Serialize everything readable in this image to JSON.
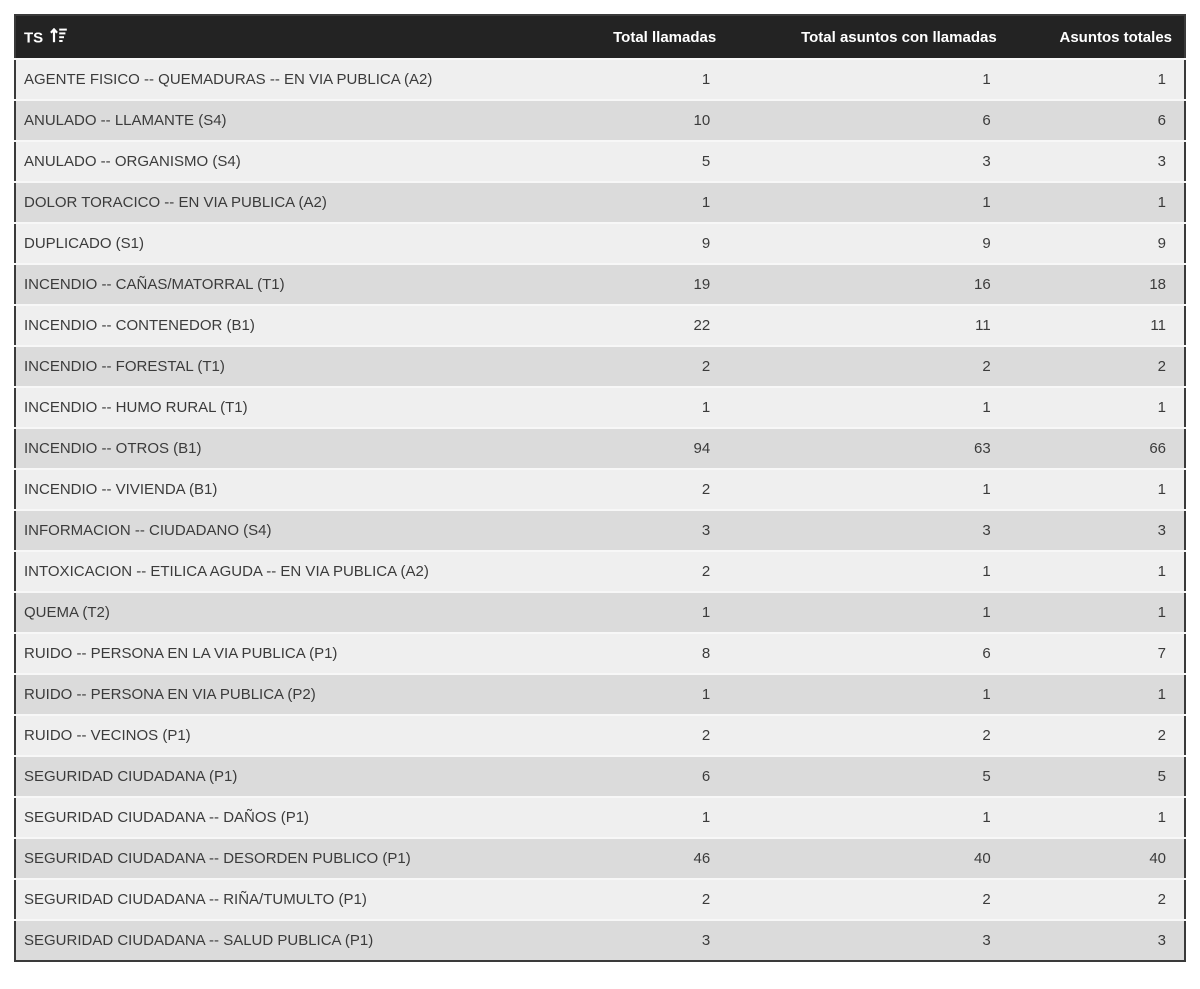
{
  "table": {
    "columns": [
      {
        "label": "TS",
        "sort": "ascending",
        "align": "left"
      },
      {
        "label": "Total llamadas",
        "align": "right"
      },
      {
        "label": "Total asuntos con llamadas",
        "align": "right"
      },
      {
        "label": "Asuntos totales",
        "align": "right"
      }
    ],
    "rows": [
      {
        "ts": "AGENTE FISICO -- QUEMADURAS -- EN VIA PUBLICA (A2)",
        "total_llamadas": 1,
        "total_asuntos_con_llamadas": 1,
        "asuntos_totales": 1
      },
      {
        "ts": "ANULADO -- LLAMANTE (S4)",
        "total_llamadas": 10,
        "total_asuntos_con_llamadas": 6,
        "asuntos_totales": 6
      },
      {
        "ts": "ANULADO -- ORGANISMO (S4)",
        "total_llamadas": 5,
        "total_asuntos_con_llamadas": 3,
        "asuntos_totales": 3
      },
      {
        "ts": "DOLOR TORACICO -- EN VIA PUBLICA (A2)",
        "total_llamadas": 1,
        "total_asuntos_con_llamadas": 1,
        "asuntos_totales": 1
      },
      {
        "ts": "DUPLICADO (S1)",
        "total_llamadas": 9,
        "total_asuntos_con_llamadas": 9,
        "asuntos_totales": 9
      },
      {
        "ts": "INCENDIO -- CAÑAS/MATORRAL (T1)",
        "total_llamadas": 19,
        "total_asuntos_con_llamadas": 16,
        "asuntos_totales": 18
      },
      {
        "ts": "INCENDIO -- CONTENEDOR (B1)",
        "total_llamadas": 22,
        "total_asuntos_con_llamadas": 11,
        "asuntos_totales": 11
      },
      {
        "ts": "INCENDIO -- FORESTAL (T1)",
        "total_llamadas": 2,
        "total_asuntos_con_llamadas": 2,
        "asuntos_totales": 2
      },
      {
        "ts": "INCENDIO -- HUMO RURAL (T1)",
        "total_llamadas": 1,
        "total_asuntos_con_llamadas": 1,
        "asuntos_totales": 1
      },
      {
        "ts": "INCENDIO -- OTROS (B1)",
        "total_llamadas": 94,
        "total_asuntos_con_llamadas": 63,
        "asuntos_totales": 66
      },
      {
        "ts": "INCENDIO -- VIVIENDA (B1)",
        "total_llamadas": 2,
        "total_asuntos_con_llamadas": 1,
        "asuntos_totales": 1
      },
      {
        "ts": "INFORMACION -- CIUDADANO (S4)",
        "total_llamadas": 3,
        "total_asuntos_con_llamadas": 3,
        "asuntos_totales": 3
      },
      {
        "ts": "INTOXICACION -- ETILICA AGUDA -- EN VIA PUBLICA (A2)",
        "total_llamadas": 2,
        "total_asuntos_con_llamadas": 1,
        "asuntos_totales": 1
      },
      {
        "ts": "QUEMA (T2)",
        "total_llamadas": 1,
        "total_asuntos_con_llamadas": 1,
        "asuntos_totales": 1
      },
      {
        "ts": "RUIDO -- PERSONA EN LA VIA PUBLICA (P1)",
        "total_llamadas": 8,
        "total_asuntos_con_llamadas": 6,
        "asuntos_totales": 7
      },
      {
        "ts": "RUIDO -- PERSONA EN VIA PUBLICA (P2)",
        "total_llamadas": 1,
        "total_asuntos_con_llamadas": 1,
        "asuntos_totales": 1
      },
      {
        "ts": "RUIDO -- VECINOS (P1)",
        "total_llamadas": 2,
        "total_asuntos_con_llamadas": 2,
        "asuntos_totales": 2
      },
      {
        "ts": "SEGURIDAD CIUDADANA (P1)",
        "total_llamadas": 6,
        "total_asuntos_con_llamadas": 5,
        "asuntos_totales": 5
      },
      {
        "ts": "SEGURIDAD CIUDADANA -- DAÑOS (P1)",
        "total_llamadas": 1,
        "total_asuntos_con_llamadas": 1,
        "asuntos_totales": 1
      },
      {
        "ts": "SEGURIDAD CIUDADANA -- DESORDEN PUBLICO (P1)",
        "total_llamadas": 46,
        "total_asuntos_con_llamadas": 40,
        "asuntos_totales": 40
      },
      {
        "ts": "SEGURIDAD CIUDADANA -- RIÑA/TUMULTO (P1)",
        "total_llamadas": 2,
        "total_asuntos_con_llamadas": 2,
        "asuntos_totales": 2
      },
      {
        "ts": "SEGURIDAD CIUDADANA -- SALUD PUBLICA (P1)",
        "total_llamadas": 3,
        "total_asuntos_con_llamadas": 3,
        "asuntos_totales": 3
      }
    ]
  },
  "icons": {
    "sort": "sort-ascending-icon"
  },
  "colors": {
    "header_background": "#232323",
    "header_text": "#ffffff",
    "row_light": "#efefef",
    "row_dark": "#dbdbdb",
    "row_separator": "#f7f7f7",
    "table_border": "#3a3a3a",
    "cell_text": "#3b3b3b",
    "page_background": "#ffffff"
  },
  "chart_data": {
    "type": "table",
    "columns": [
      "TS",
      "Total llamadas",
      "Total asuntos con llamadas",
      "Asuntos totales"
    ],
    "rows": [
      [
        "AGENTE FISICO -- QUEMADURAS -- EN VIA PUBLICA (A2)",
        1,
        1,
        1
      ],
      [
        "ANULADO -- LLAMANTE (S4)",
        10,
        6,
        6
      ],
      [
        "ANULADO -- ORGANISMO (S4)",
        5,
        3,
        3
      ],
      [
        "DOLOR TORACICO -- EN VIA PUBLICA (A2)",
        1,
        1,
        1
      ],
      [
        "DUPLICADO (S1)",
        9,
        9,
        9
      ],
      [
        "INCENDIO -- CAÑAS/MATORRAL (T1)",
        19,
        16,
        18
      ],
      [
        "INCENDIO -- CONTENEDOR (B1)",
        22,
        11,
        11
      ],
      [
        "INCENDIO -- FORESTAL (T1)",
        2,
        2,
        2
      ],
      [
        "INCENDIO -- HUMO RURAL (T1)",
        1,
        1,
        1
      ],
      [
        "INCENDIO -- OTROS (B1)",
        94,
        63,
        66
      ],
      [
        "INCENDIO -- VIVIENDA (B1)",
        2,
        1,
        1
      ],
      [
        "INFORMACION -- CIUDADANO (S4)",
        3,
        3,
        3
      ],
      [
        "INTOXICACION -- ETILICA AGUDA -- EN VIA PUBLICA (A2)",
        2,
        1,
        1
      ],
      [
        "QUEMA (T2)",
        1,
        1,
        1
      ],
      [
        "RUIDO -- PERSONA EN LA VIA PUBLICA (P1)",
        8,
        6,
        7
      ],
      [
        "RUIDO -- PERSONA EN VIA PUBLICA (P2)",
        1,
        1,
        1
      ],
      [
        "RUIDO -- VECINOS (P1)",
        2,
        2,
        2
      ],
      [
        "SEGURIDAD CIUDADANA (P1)",
        6,
        5,
        5
      ],
      [
        "SEGURIDAD CIUDADANA -- DAÑOS (P1)",
        1,
        1,
        1
      ],
      [
        "SEGURIDAD CIUDADANA -- DESORDEN PUBLICO (P1)",
        46,
        40,
        40
      ],
      [
        "SEGURIDAD CIUDADANA -- RIÑA/TUMULTO (P1)",
        2,
        2,
        2
      ],
      [
        "SEGURIDAD CIUDADANA -- SALUD PUBLICA (P1)",
        3,
        3,
        3
      ]
    ]
  }
}
